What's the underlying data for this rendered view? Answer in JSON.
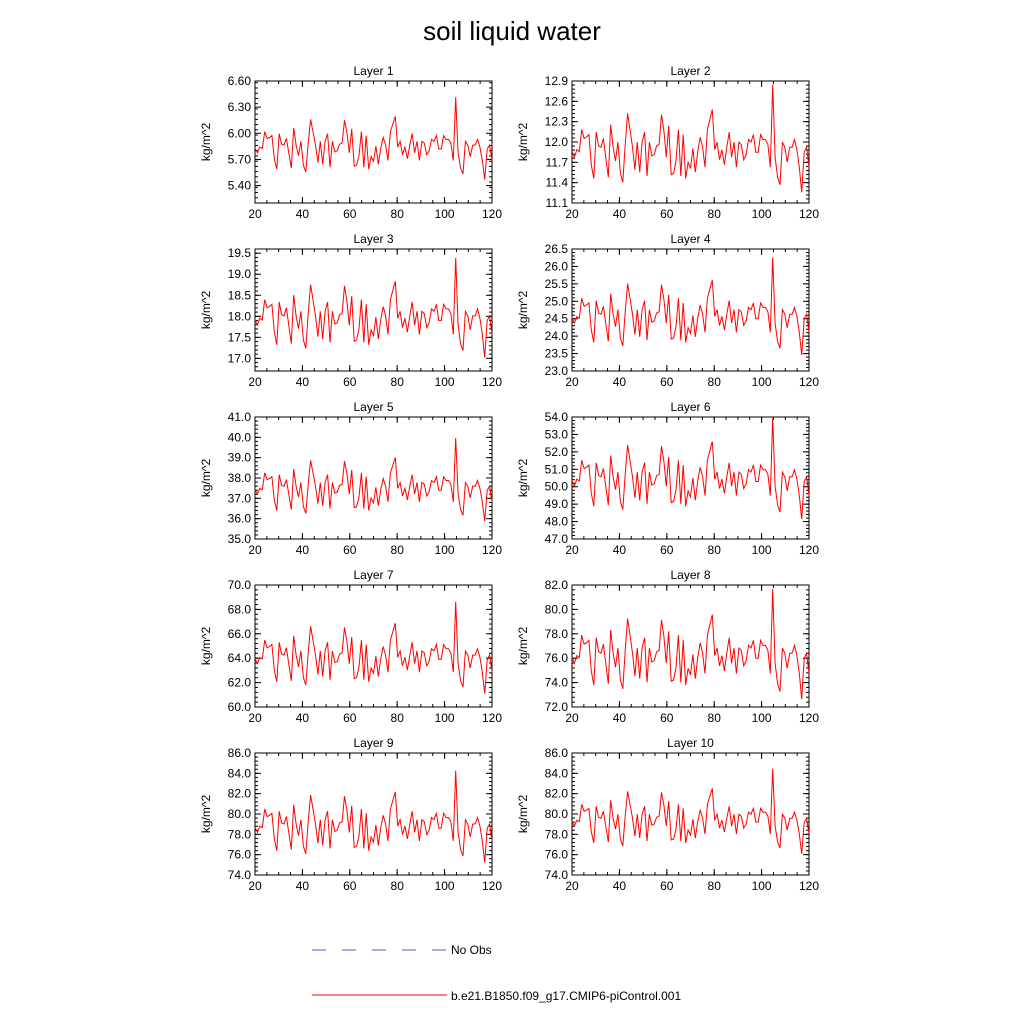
{
  "title": "soil liquid water",
  "colors": {
    "model_line": "#ff0000",
    "obs_line": "#5b5bd6",
    "axis": "#000000"
  },
  "legend": {
    "entries": [
      {
        "label": "No Obs",
        "style": "dashed",
        "color": "#5b5bd6"
      },
      {
        "label": "b.e21.B1850.f09_g17.CMIP6-piControl.001",
        "style": "solid",
        "color": "#ff0000"
      }
    ]
  },
  "chart_data": {
    "type": "line",
    "x_range": [
      20,
      120
    ],
    "x_ticks": [
      "20",
      "40",
      "60",
      "80",
      "100",
      "120"
    ],
    "base_series": [
      0.05,
      -0.2,
      0.1,
      0.02,
      0.9,
      0.55,
      0.6,
      0.7,
      -0.5,
      -1.05,
      0.8,
      0.25,
      0.2,
      0.55,
      -0.25,
      -1.0,
      1.1,
      0.2,
      -0.35,
      0.4,
      -0.85,
      -1.2,
      0.3,
      1.55,
      0.9,
      0.2,
      -0.7,
      0.4,
      -0.8,
      0.4,
      0.8,
      -0.95,
      0.4,
      -0.15,
      -0.1,
      0.25,
      0.3,
      1.5,
      0.85,
      -0.2,
      1.05,
      -0.9,
      -0.85,
      -0.35,
      0.9,
      -0.95,
      0.7,
      -1.05,
      -0.4,
      -0.65,
      0.15,
      -0.8,
      0.05,
      0.6,
      0.2,
      -0.6,
      0.9,
      1.3,
      1.7,
      0.1,
      0.4,
      -0.3,
      0.1,
      -0.5,
      0.2,
      0.8,
      -0.2,
      0.4,
      -0.6,
      0.4,
      0.3,
      -0.3,
      -0.1,
      0.5,
      0.4,
      0.7,
      0.0,
      0.0,
      0.7,
      0.5,
      0.5,
      0.3,
      -0.6,
      2.7,
      -0.2,
      -1.0,
      -1.3,
      0.4,
      0.2,
      -0.4,
      0.2,
      0.2,
      0.5,
      0.1,
      -0.6,
      -1.6,
      0.0,
      0.2,
      -0.6
    ],
    "series_name": "b.e21.B1850.f09_g17.CMIP6-piControl.001",
    "panels": [
      {
        "title": "Layer 1",
        "ylabel": "kg/m^2",
        "ylim": [
          5.2,
          6.6
        ],
        "yticks": [
          "6.60",
          "6.30",
          "6.00",
          "5.70",
          "5.40"
        ],
        "mean": 5.82,
        "amp": 0.22
      },
      {
        "title": "Layer 2",
        "ylabel": "kg/m^2",
        "ylim": [
          11.1,
          12.9
        ],
        "yticks": [
          "12.9",
          "12.6",
          "12.3",
          "12.0",
          "11.7",
          "11.4",
          "11.1"
        ],
        "mean": 11.85,
        "amp": 0.37
      },
      {
        "title": "Layer 3",
        "ylabel": "kg/m^2",
        "ylim": [
          16.7,
          19.6
        ],
        "yticks": [
          "19.5",
          "19.0",
          "18.5",
          "18.0",
          "17.5",
          "17.0"
        ],
        "mean": 17.9,
        "amp": 0.55
      },
      {
        "title": "Layer 4",
        "ylabel": "kg/m^2",
        "ylim": [
          23.0,
          26.5
        ],
        "yticks": [
          "26.5",
          "26.0",
          "25.5",
          "25.0",
          "24.5",
          "24.0",
          "23.5",
          "23.0"
        ],
        "mean": 24.5,
        "amp": 0.65
      },
      {
        "title": "Layer 5",
        "ylabel": "kg/m^2",
        "ylim": [
          35.0,
          41.0
        ],
        "yticks": [
          "41.0",
          "40.0",
          "39.0",
          "38.0",
          "37.0",
          "36.0",
          "35.0"
        ],
        "mean": 37.4,
        "amp": 0.95
      },
      {
        "title": "Layer 6",
        "ylabel": "kg/m^2",
        "ylim": [
          47.0,
          54.0
        ],
        "yticks": [
          "54.0",
          "53.0",
          "52.0",
          "51.0",
          "50.0",
          "49.0",
          "48.0",
          "47.0"
        ],
        "mean": 50.3,
        "amp": 1.35
      },
      {
        "title": "Layer 7",
        "ylabel": "kg/m^2",
        "ylim": [
          60.0,
          70.0
        ],
        "yticks": [
          "70.0",
          "68.0",
          "66.0",
          "64.0",
          "62.0",
          "60.0"
        ],
        "mean": 63.9,
        "amp": 1.75
      },
      {
        "title": "Layer 8",
        "ylabel": "kg/m^2",
        "ylim": [
          72.0,
          82.0
        ],
        "yticks": [
          "82.0",
          "80.0",
          "78.0",
          "76.0",
          "74.0",
          "72.0"
        ],
        "mean": 76.0,
        "amp": 2.1
      },
      {
        "title": "Layer 9",
        "ylabel": "kg/m^2",
        "ylim": [
          74.0,
          86.0
        ],
        "yticks": [
          "86.0",
          "84.0",
          "82.0",
          "80.0",
          "78.0",
          "76.0",
          "74.0"
        ],
        "mean": 78.6,
        "amp": 2.1
      },
      {
        "title": "Layer 10",
        "ylabel": "kg/m^2",
        "ylim": [
          74.0,
          86.0
        ],
        "yticks": [
          "86.0",
          "84.0",
          "82.0",
          "80.0",
          "78.0",
          "76.0",
          "74.0"
        ],
        "mean": 79.2,
        "amp": 1.95
      }
    ]
  }
}
